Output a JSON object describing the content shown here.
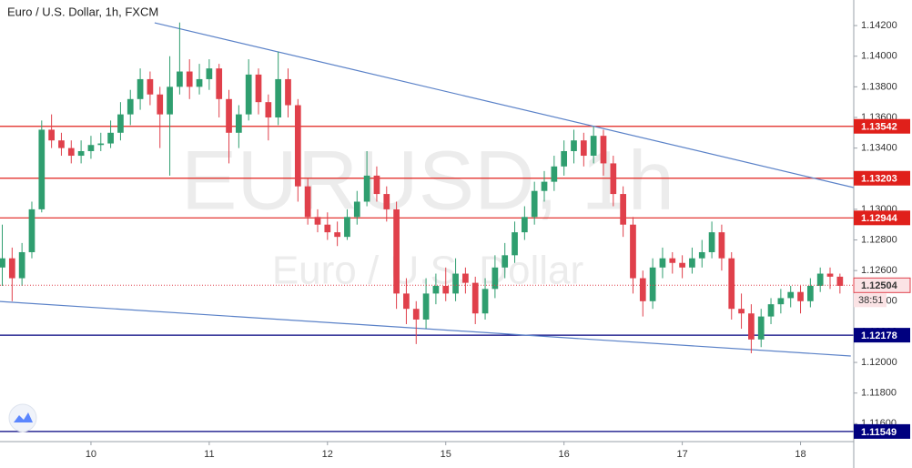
{
  "chart_data": {
    "type": "candlestick",
    "title": "Euro / U.S. Dollar, 1h, FXCM",
    "watermark": "EURUSD, 1h",
    "watermark_subtitle": "Euro / U.S. Dollar",
    "up_color": "#2f9e6f",
    "down_color": "#e0404b",
    "x": [
      3,
      4,
      5,
      6,
      7,
      8,
      9,
      10,
      11,
      12,
      13,
      14,
      15,
      16,
      17,
      18,
      19,
      20,
      21,
      22,
      23,
      24,
      25,
      26,
      27,
      28,
      29,
      30,
      31,
      32,
      33,
      34,
      35,
      36,
      37,
      38,
      39,
      40,
      41,
      42,
      43,
      44,
      45,
      46,
      47,
      48,
      49,
      50,
      51,
      52,
      53,
      54,
      55,
      56,
      57,
      58,
      59,
      60,
      61,
      62,
      63,
      64,
      65,
      66,
      67,
      68,
      69,
      70,
      71,
      72,
      73,
      74,
      75,
      76,
      77,
      78,
      79,
      80,
      81,
      82,
      83,
      84,
      85,
      86,
      87,
      88
    ],
    "ohlc": [
      [
        1.1262,
        1.129,
        1.125,
        1.1268
      ],
      [
        1.1268,
        1.1275,
        1.124,
        1.1255
      ],
      [
        1.1255,
        1.1278,
        1.125,
        1.1272
      ],
      [
        1.1272,
        1.1305,
        1.1268,
        1.13
      ],
      [
        1.13,
        1.1358,
        1.1298,
        1.1352
      ],
      [
        1.1352,
        1.1362,
        1.134,
        1.1345
      ],
      [
        1.1345,
        1.135,
        1.1335,
        1.134
      ],
      [
        1.134,
        1.1345,
        1.133,
        1.1335
      ],
      [
        1.1335,
        1.1345,
        1.133,
        1.1338
      ],
      [
        1.1338,
        1.1348,
        1.1333,
        1.1342
      ],
      [
        1.1342,
        1.135,
        1.1338,
        1.1343
      ],
      [
        1.1343,
        1.1358,
        1.134,
        1.135
      ],
      [
        1.135,
        1.137,
        1.1345,
        1.1362
      ],
      [
        1.1362,
        1.1378,
        1.1355,
        1.1372
      ],
      [
        1.1372,
        1.1392,
        1.1365,
        1.1385
      ],
      [
        1.1385,
        1.139,
        1.1368,
        1.1375
      ],
      [
        1.1375,
        1.138,
        1.134,
        1.1362
      ],
      [
        1.1362,
        1.14,
        1.1322,
        1.138
      ],
      [
        1.138,
        1.1422,
        1.1375,
        1.139
      ],
      [
        1.139,
        1.1398,
        1.1372,
        1.138
      ],
      [
        1.138,
        1.1395,
        1.1375,
        1.1385
      ],
      [
        1.1385,
        1.1398,
        1.1378,
        1.1392
      ],
      [
        1.1392,
        1.1395,
        1.136,
        1.1372
      ],
      [
        1.1372,
        1.1378,
        1.133,
        1.135
      ],
      [
        1.135,
        1.1368,
        1.134,
        1.1362
      ],
      [
        1.1362,
        1.1398,
        1.1358,
        1.1388
      ],
      [
        1.1388,
        1.1392,
        1.1362,
        1.137
      ],
      [
        1.137,
        1.1375,
        1.1345,
        1.136
      ],
      [
        1.136,
        1.1403,
        1.1355,
        1.1385
      ],
      [
        1.1385,
        1.1392,
        1.136,
        1.1368
      ],
      [
        1.1368,
        1.1372,
        1.1305,
        1.1315
      ],
      [
        1.1315,
        1.132,
        1.129,
        1.1295
      ],
      [
        1.1295,
        1.13,
        1.1285,
        1.129
      ],
      [
        1.129,
        1.1298,
        1.128,
        1.1285
      ],
      [
        1.1285,
        1.1292,
        1.1276,
        1.1282
      ],
      [
        1.1282,
        1.13,
        1.128,
        1.1295
      ],
      [
        1.1295,
        1.1312,
        1.129,
        1.1305
      ],
      [
        1.1305,
        1.1338,
        1.1302,
        1.1322
      ],
      [
        1.1322,
        1.1328,
        1.1305,
        1.131
      ],
      [
        1.131,
        1.1315,
        1.1292,
        1.13
      ],
      [
        1.13,
        1.1305,
        1.1235,
        1.1245
      ],
      [
        1.1245,
        1.1255,
        1.1225,
        1.1235
      ],
      [
        1.1235,
        1.124,
        1.1212,
        1.1228
      ],
      [
        1.1228,
        1.1255,
        1.1222,
        1.1245
      ],
      [
        1.1245,
        1.1258,
        1.1238,
        1.125
      ],
      [
        1.125,
        1.1262,
        1.124,
        1.1245
      ],
      [
        1.1245,
        1.1268,
        1.124,
        1.1258
      ],
      [
        1.1258,
        1.1262,
        1.1245,
        1.1252
      ],
      [
        1.1252,
        1.1256,
        1.1225,
        1.1232
      ],
      [
        1.1232,
        1.1255,
        1.1228,
        1.1248
      ],
      [
        1.1248,
        1.127,
        1.1242,
        1.1262
      ],
      [
        1.1262,
        1.1278,
        1.1255,
        1.127
      ],
      [
        1.127,
        1.1292,
        1.1265,
        1.1285
      ],
      [
        1.1285,
        1.1302,
        1.128,
        1.1295
      ],
      [
        1.1295,
        1.1318,
        1.129,
        1.1312
      ],
      [
        1.1312,
        1.1325,
        1.1305,
        1.1318
      ],
      [
        1.1318,
        1.1335,
        1.1312,
        1.1328
      ],
      [
        1.1328,
        1.1345,
        1.1322,
        1.1338
      ],
      [
        1.1338,
        1.1352,
        1.133,
        1.1345
      ],
      [
        1.1345,
        1.135,
        1.1328,
        1.1335
      ],
      [
        1.1335,
        1.1354,
        1.133,
        1.1348
      ],
      [
        1.1348,
        1.1352,
        1.1322,
        1.133
      ],
      [
        1.133,
        1.1335,
        1.1302,
        1.131
      ],
      [
        1.131,
        1.1315,
        1.1282,
        1.129
      ],
      [
        1.129,
        1.1295,
        1.1245,
        1.1255
      ],
      [
        1.1255,
        1.126,
        1.123,
        1.124
      ],
      [
        1.124,
        1.1268,
        1.1235,
        1.1262
      ],
      [
        1.1262,
        1.1275,
        1.1255,
        1.1268
      ],
      [
        1.1268,
        1.1272,
        1.1258,
        1.1265
      ],
      [
        1.1265,
        1.127,
        1.1255,
        1.1262
      ],
      [
        1.1262,
        1.1275,
        1.1258,
        1.1268
      ],
      [
        1.1268,
        1.128,
        1.1262,
        1.1272
      ],
      [
        1.1272,
        1.1292,
        1.1268,
        1.1285
      ],
      [
        1.1285,
        1.129,
        1.126,
        1.1268
      ],
      [
        1.1268,
        1.1272,
        1.1228,
        1.1235
      ],
      [
        1.1235,
        1.1245,
        1.1222,
        1.1232
      ],
      [
        1.1232,
        1.1238,
        1.1206,
        1.1215
      ],
      [
        1.1215,
        1.1235,
        1.121,
        1.123
      ],
      [
        1.123,
        1.1242,
        1.1225,
        1.1238
      ],
      [
        1.1238,
        1.1248,
        1.1232,
        1.1242
      ],
      [
        1.1242,
        1.125,
        1.1236,
        1.1246
      ],
      [
        1.1246,
        1.125,
        1.1232,
        1.124
      ],
      [
        1.124,
        1.1255,
        1.1236,
        1.125
      ],
      [
        1.125,
        1.1262,
        1.1246,
        1.1258
      ],
      [
        1.1258,
        1.1262,
        1.1248,
        1.1256
      ],
      [
        1.1256,
        1.1258,
        1.1245,
        1.125
      ]
    ],
    "xlim": [
      2.77,
      89.4
    ],
    "xticks": [
      {
        "value": 12,
        "label": "10"
      },
      {
        "value": 24,
        "label": "11"
      },
      {
        "value": 36,
        "label": "12"
      },
      {
        "value": 48,
        "label": "15"
      },
      {
        "value": 60,
        "label": "16"
      },
      {
        "value": 72,
        "label": "17"
      },
      {
        "value": 84,
        "label": "18"
      }
    ],
    "ylim": [
      1.11483,
      1.14367
    ],
    "yticks": [
      {
        "value": 1.142,
        "label": "1.14200"
      },
      {
        "value": 1.14,
        "label": "1.14000"
      },
      {
        "value": 1.138,
        "label": "1.13800"
      },
      {
        "value": 1.136,
        "label": "1.13600"
      },
      {
        "value": 1.134,
        "label": "1.13400"
      },
      {
        "value": 1.132,
        "label": "1.13200"
      },
      {
        "value": 1.13,
        "label": "1.13000"
      },
      {
        "value": 1.128,
        "label": "1.12800"
      },
      {
        "value": 1.126,
        "label": "1.12600"
      },
      {
        "value": 1.124,
        "label": "1.12400"
      },
      {
        "value": 1.122,
        "label": "1.12200"
      },
      {
        "value": 1.12,
        "label": "1.12000"
      },
      {
        "value": 1.118,
        "label": "1.11800"
      },
      {
        "value": 1.116,
        "label": "1.11600"
      }
    ],
    "grid": false,
    "levels": [
      {
        "value": 1.13542,
        "color": "#e0201b"
      },
      {
        "value": 1.13203,
        "color": "#e0201b"
      },
      {
        "value": 1.12944,
        "color": "#e0201b"
      },
      {
        "value": 1.12178,
        "color": "#00007f"
      },
      {
        "value": 1.11549,
        "color": "#00007f"
      }
    ],
    "last_price": 1.12504,
    "last_price_color": "#e0404b",
    "countdown": "38:51",
    "trendline_color": "#5b82c8",
    "trendlines": [
      {
        "x": [
          18.46,
          89.4
        ],
        "y": [
          1.14218,
          1.13142
        ]
      },
      {
        "x": [
          2.77,
          89.1
        ],
        "y": [
          1.12398,
          1.12042
        ]
      }
    ]
  }
}
